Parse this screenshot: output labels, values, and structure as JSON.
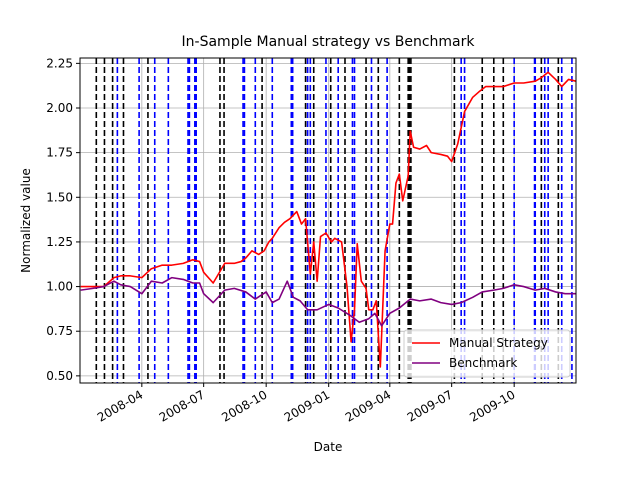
{
  "chart_data": {
    "type": "line",
    "title": "In-Sample Manual strategy vs Benchmark",
    "xlabel": "Date",
    "ylabel": "Normalized value",
    "xlim": [
      "2008-01-01",
      "2009-12-31"
    ],
    "ylim": [
      0.46,
      2.28
    ],
    "x_ticks": [
      "2008-04",
      "2008-07",
      "2008-10",
      "2009-01",
      "2009-04",
      "2009-07",
      "2009-10"
    ],
    "x_tick_dates": [
      "2008-04-01",
      "2008-07-01",
      "2008-10-01",
      "2009-01-01",
      "2009-04-01",
      "2009-07-01",
      "2009-10-01"
    ],
    "y_ticks": [
      0.5,
      0.75,
      1.0,
      1.25,
      1.5,
      1.75,
      2.0,
      2.25
    ],
    "y_tick_labels": [
      "0.50",
      "0.75",
      "1.00",
      "1.25",
      "1.50",
      "1.75",
      "2.00",
      "2.25"
    ],
    "grid": true,
    "legend": {
      "placement": "lower-right",
      "entries": [
        "Manual Strategy",
        "Benchmark"
      ]
    },
    "colors": {
      "Manual Strategy": "#ff0000",
      "Benchmark": "#800080",
      "long_entry": "#0000ff",
      "short_entry": "#000000",
      "grid": "#b0b0b0"
    },
    "series": [
      {
        "name": "Manual Strategy",
        "x": [
          "2008-01-02",
          "2008-01-20",
          "2008-02-05",
          "2008-02-20",
          "2008-03-01",
          "2008-03-15",
          "2008-04-01",
          "2008-04-15",
          "2008-05-01",
          "2008-05-15",
          "2008-06-01",
          "2008-06-15",
          "2008-06-25",
          "2008-07-01",
          "2008-07-15",
          "2008-08-01",
          "2008-08-15",
          "2008-08-25",
          "2008-09-01",
          "2008-09-10",
          "2008-09-20",
          "2008-09-28",
          "2008-10-05",
          "2008-10-10",
          "2008-10-20",
          "2008-10-28",
          "2008-11-05",
          "2008-11-15",
          "2008-11-22",
          "2008-11-28",
          "2008-12-05",
          "2008-12-10",
          "2008-12-15",
          "2008-12-20",
          "2008-12-28",
          "2009-01-05",
          "2009-01-10",
          "2009-01-20",
          "2009-01-28",
          "2009-02-03",
          "2009-02-08",
          "2009-02-12",
          "2009-02-18",
          "2009-02-25",
          "2009-03-01",
          "2009-03-07",
          "2009-03-12",
          "2009-03-18",
          "2009-03-25",
          "2009-04-01",
          "2009-04-05",
          "2009-04-10",
          "2009-04-15",
          "2009-04-20",
          "2009-04-28",
          "2009-05-01",
          "2009-05-06",
          "2009-05-15",
          "2009-05-25",
          "2009-06-01",
          "2009-06-15",
          "2009-06-25",
          "2009-07-01",
          "2009-07-10",
          "2009-07-20",
          "2009-08-01",
          "2009-08-10",
          "2009-08-20",
          "2009-09-01",
          "2009-09-15",
          "2009-10-01",
          "2009-10-15",
          "2009-11-01",
          "2009-11-10",
          "2009-11-20",
          "2009-12-01",
          "2009-12-10",
          "2009-12-20",
          "2009-12-31"
        ],
        "values": [
          1.0,
          1.0,
          1.0,
          1.05,
          1.06,
          1.06,
          1.05,
          1.1,
          1.12,
          1.12,
          1.13,
          1.15,
          1.14,
          1.08,
          1.02,
          1.13,
          1.13,
          1.14,
          1.16,
          1.2,
          1.18,
          1.2,
          1.25,
          1.27,
          1.33,
          1.36,
          1.38,
          1.42,
          1.35,
          1.38,
          1.07,
          1.25,
          1.03,
          1.28,
          1.3,
          1.25,
          1.27,
          1.25,
          1.0,
          0.69,
          0.87,
          1.24,
          1.03,
          0.99,
          0.87,
          0.87,
          0.92,
          0.55,
          1.2,
          1.35,
          1.35,
          1.58,
          1.63,
          1.48,
          1.62,
          1.87,
          1.78,
          1.77,
          1.79,
          1.75,
          1.74,
          1.73,
          1.7,
          1.8,
          1.98,
          2.06,
          2.09,
          2.12,
          2.12,
          2.12,
          2.14,
          2.14,
          2.15,
          2.17,
          2.2,
          2.16,
          2.12,
          2.16,
          2.15
        ]
      },
      {
        "name": "Benchmark",
        "x": [
          "2008-01-02",
          "2008-01-20",
          "2008-02-05",
          "2008-02-20",
          "2008-03-01",
          "2008-03-15",
          "2008-04-01",
          "2008-04-15",
          "2008-05-01",
          "2008-05-15",
          "2008-06-01",
          "2008-06-15",
          "2008-06-25",
          "2008-07-01",
          "2008-07-15",
          "2008-08-01",
          "2008-08-15",
          "2008-09-01",
          "2008-09-15",
          "2008-10-01",
          "2008-10-10",
          "2008-10-20",
          "2008-11-01",
          "2008-11-10",
          "2008-11-20",
          "2008-12-01",
          "2008-12-15",
          "2009-01-01",
          "2009-01-15",
          "2009-02-01",
          "2009-02-15",
          "2009-03-01",
          "2009-03-10",
          "2009-03-20",
          "2009-04-01",
          "2009-04-15",
          "2009-05-01",
          "2009-05-15",
          "2009-06-01",
          "2009-06-15",
          "2009-07-01",
          "2009-07-15",
          "2009-08-01",
          "2009-08-15",
          "2009-09-01",
          "2009-09-15",
          "2009-10-01",
          "2009-10-15",
          "2009-11-01",
          "2009-11-15",
          "2009-12-01",
          "2009-12-15",
          "2009-12-31"
        ],
        "values": [
          0.98,
          0.99,
          1.0,
          1.03,
          1.01,
          1.0,
          0.96,
          1.03,
          1.02,
          1.05,
          1.04,
          1.02,
          1.02,
          0.96,
          0.91,
          0.98,
          0.99,
          0.97,
          0.93,
          0.97,
          0.91,
          0.93,
          1.03,
          0.94,
          0.92,
          0.87,
          0.87,
          0.9,
          0.88,
          0.84,
          0.8,
          0.82,
          0.85,
          0.78,
          0.85,
          0.88,
          0.93,
          0.92,
          0.93,
          0.91,
          0.9,
          0.91,
          0.94,
          0.97,
          0.98,
          0.99,
          1.01,
          1.0,
          0.98,
          0.99,
          0.97,
          0.96,
          0.96
        ]
      }
    ],
    "long_entries": [
      "2008-02-25",
      "2008-03-28",
      "2008-04-20",
      "2008-05-10",
      "2008-06-08",
      "2008-06-10",
      "2008-06-18",
      "2008-06-20",
      "2008-08-28",
      "2008-08-30",
      "2008-09-15",
      "2008-10-10",
      "2008-11-07",
      "2008-11-09",
      "2008-12-01",
      "2008-12-05",
      "2008-12-28",
      "2009-01-15",
      "2009-02-05",
      "2009-02-08",
      "2009-03-05",
      "2009-03-28",
      "2009-07-15",
      "2009-07-20",
      "2009-10-01",
      "2009-10-31",
      "2009-11-01",
      "2009-11-15",
      "2009-11-20",
      "2009-12-10",
      "2009-12-25"
    ],
    "short_entries": [
      "2008-01-25",
      "2008-02-06",
      "2008-02-18",
      "2008-03-05",
      "2008-04-10",
      "2008-07-25",
      "2008-07-31",
      "2008-09-25",
      "2008-11-28",
      "2008-12-10",
      "2009-01-04",
      "2009-01-25",
      "2009-02-25",
      "2009-03-15",
      "2009-04-15",
      "2009-04-28",
      "2009-04-30",
      "2009-05-02",
      "2009-07-05",
      "2009-08-15",
      "2009-09-01",
      "2009-09-15",
      "2009-11-10",
      "2009-12-05"
    ]
  }
}
